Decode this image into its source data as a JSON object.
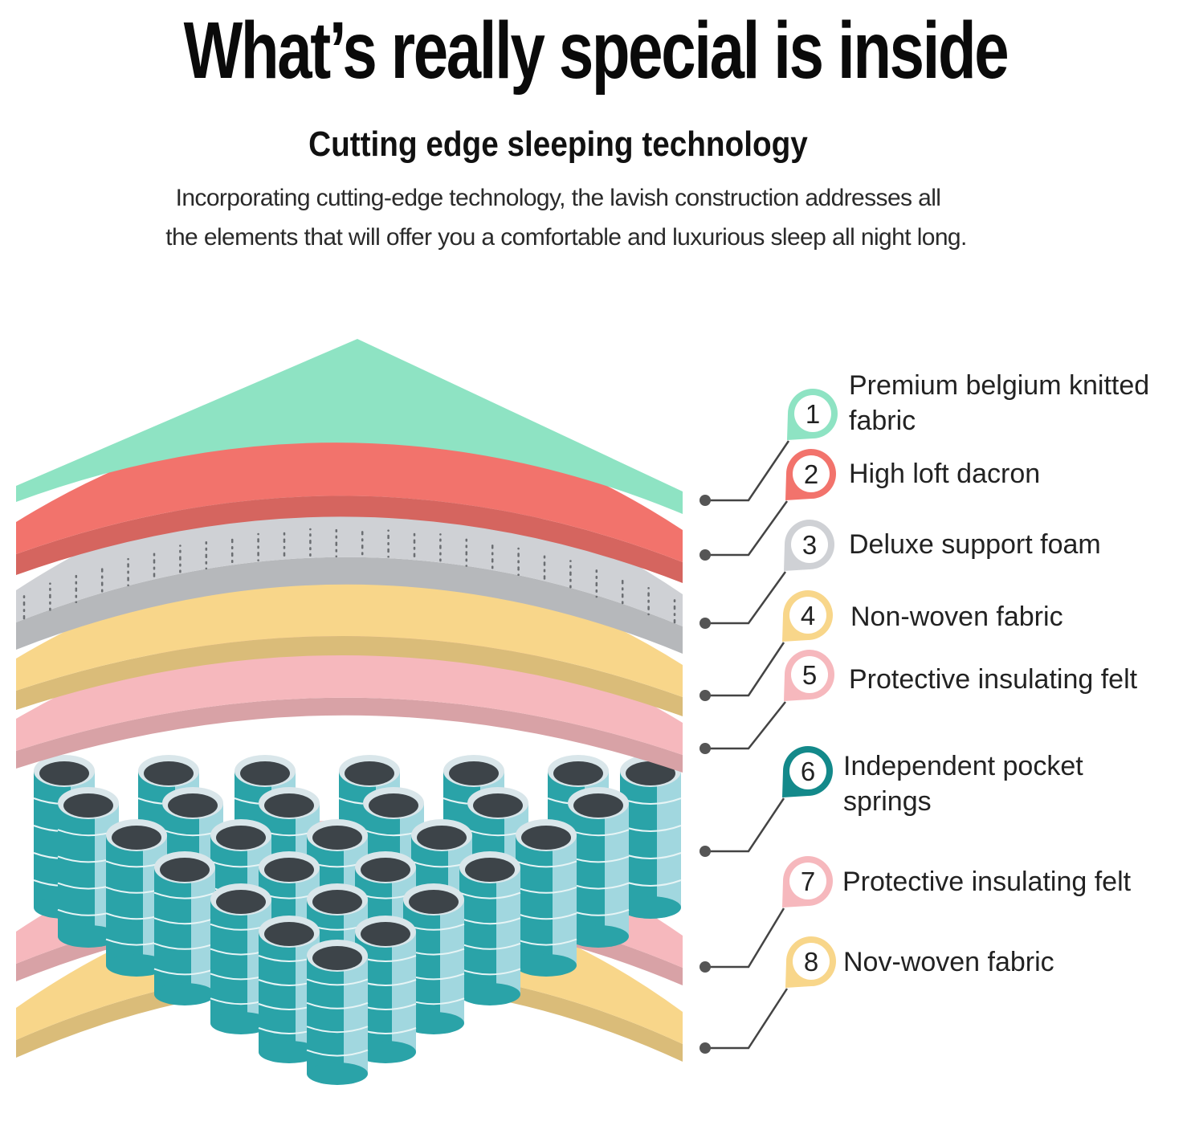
{
  "header": {
    "title": "What’s really special is inside",
    "subtitle": "Cutting edge sleeping technology",
    "description_lines": [
      "Incorporating cutting-edge technology, the lavish construction addresses all",
      "the elements that will offer you a comfortable and luxurious sleep all night long."
    ]
  },
  "layers": [
    {
      "number": "1",
      "label_lines": [
        "Premium belgium knitted",
        "fabric"
      ],
      "color": "#8ee3c3"
    },
    {
      "number": "2",
      "label_lines": [
        "High loft dacron"
      ],
      "color": "#f2736c"
    },
    {
      "number": "3",
      "label_lines": [
        "Deluxe support foam"
      ],
      "color": "#cfd1d5"
    },
    {
      "number": "4",
      "label_lines": [
        "Non-woven fabric"
      ],
      "color": "#f8d68a"
    },
    {
      "number": "5",
      "label_lines": [
        "Protective insulating felt"
      ],
      "color": "#f6b8bd"
    },
    {
      "number": "6",
      "label_lines": [
        "Independent pocket",
        "springs"
      ],
      "color": "#13898a"
    },
    {
      "number": "7",
      "label_lines": [
        "Protective insulating felt"
      ],
      "color": "#f6b8bd"
    },
    {
      "number": "8",
      "label_lines": [
        "Nov-woven fabric"
      ],
      "color": "#f8d68a"
    }
  ],
  "spring_color": "#2aa3a8"
}
